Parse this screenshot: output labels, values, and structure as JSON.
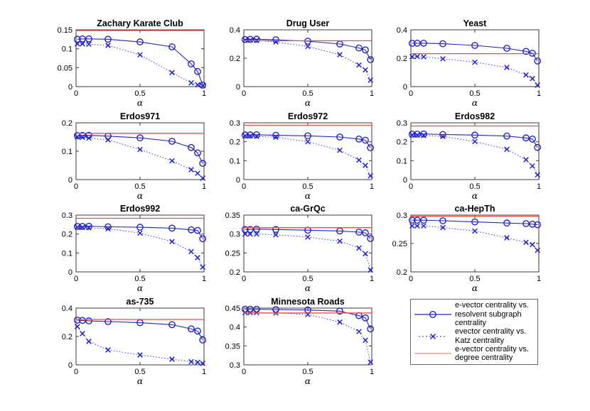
{
  "figure": {
    "background": "#ffffff"
  },
  "colors": {
    "series_blue": "#2323cd",
    "degree_red": "#ef4f47",
    "legend_degree_pink": "#f4b2ae",
    "axis_box": "#3a3a3a",
    "text": "#000000",
    "legend_border": "#666666"
  },
  "xlabel": "α",
  "legend": {
    "entries": [
      {
        "marker": "circle-line",
        "label": "e-vector centrality vs. resolvent subgraph centrality"
      },
      {
        "marker": "x-line",
        "label": "evector centrality vs. Katz centrality"
      },
      {
        "marker": "plain-line",
        "label": "e-vector centrality vs. degree centrality"
      }
    ]
  },
  "chart_data": [
    {
      "type": "line",
      "title": "Zachary Karate Club",
      "x": [
        0.01,
        0.05,
        0.1,
        0.25,
        0.5,
        0.75,
        0.9,
        0.95,
        0.99
      ],
      "xticks": [
        "0",
        "0.5",
        "1"
      ],
      "xlim": [
        0,
        1
      ],
      "ylim": [
        0,
        0.15
      ],
      "yticks": [
        "0",
        "0.05",
        "0.1",
        "0.15"
      ],
      "series": [
        {
          "name": "e-vector centrality vs. resolvent subgraph centrality",
          "marker": "circle",
          "values": [
            0.125,
            0.126,
            0.126,
            0.125,
            0.118,
            0.105,
            0.06,
            0.04,
            0.004
          ]
        },
        {
          "name": "evector centrality vs. Katz centrality",
          "marker": "x",
          "values": [
            0.113,
            0.113,
            0.112,
            0.109,
            0.084,
            0.037,
            0.01,
            0.005,
            0.002
          ]
        },
        {
          "name": "e-vector centrality vs. degree centrality",
          "marker": "none",
          "constant": 0.148
        }
      ]
    },
    {
      "type": "line",
      "title": "Drug User",
      "x": [
        0.01,
        0.05,
        0.1,
        0.25,
        0.5,
        0.75,
        0.9,
        0.95,
        0.99
      ],
      "xticks": [
        "0",
        "0.5",
        "1"
      ],
      "xlim": [
        0,
        1
      ],
      "ylim": [
        0,
        0.4
      ],
      "yticks": [
        "0",
        "0.2",
        "0.4"
      ],
      "series": [
        {
          "name": "e-vector centrality vs. resolvent subgraph centrality",
          "marker": "circle",
          "values": [
            0.332,
            0.333,
            0.334,
            0.33,
            0.32,
            0.3,
            0.272,
            0.258,
            0.19
          ]
        },
        {
          "name": "evector centrality vs. Katz centrality",
          "marker": "x",
          "values": [
            0.328,
            0.327,
            0.325,
            0.314,
            0.283,
            0.225,
            0.152,
            0.118,
            0.045
          ]
        },
        {
          "name": "e-vector centrality vs. degree centrality",
          "marker": "none",
          "constant": 0.323
        }
      ]
    },
    {
      "type": "line",
      "title": "Yeast",
      "x": [
        0.01,
        0.05,
        0.1,
        0.25,
        0.5,
        0.75,
        0.9,
        0.95,
        0.99
      ],
      "xticks": [
        "0",
        "0.5",
        "1"
      ],
      "xlim": [
        0,
        1
      ],
      "ylim": [
        0,
        0.4
      ],
      "yticks": [
        "0",
        "0.2",
        "0.4"
      ],
      "series": [
        {
          "name": "e-vector centrality vs. resolvent subgraph centrality",
          "marker": "circle",
          "values": [
            0.305,
            0.306,
            0.306,
            0.302,
            0.29,
            0.27,
            0.248,
            0.235,
            0.18
          ]
        },
        {
          "name": "evector centrality vs. Katz centrality",
          "marker": "x",
          "values": [
            0.212,
            0.212,
            0.21,
            0.196,
            0.172,
            0.135,
            0.082,
            0.057,
            0.01
          ]
        },
        {
          "name": "e-vector centrality vs. degree centrality",
          "marker": "none",
          "constant": 0.232
        }
      ]
    },
    {
      "type": "line",
      "title": "Erdos971",
      "x": [
        0.01,
        0.05,
        0.1,
        0.25,
        0.5,
        0.75,
        0.9,
        0.95,
        0.99
      ],
      "xticks": [
        "0",
        "0.5",
        "1"
      ],
      "xlim": [
        0,
        1
      ],
      "ylim": [
        0,
        0.2
      ],
      "yticks": [
        "0",
        "0.1",
        "0.2"
      ],
      "series": [
        {
          "name": "e-vector centrality vs. resolvent subgraph centrality",
          "marker": "circle",
          "values": [
            0.155,
            0.156,
            0.156,
            0.153,
            0.147,
            0.135,
            0.113,
            0.094,
            0.057
          ]
        },
        {
          "name": "evector centrality vs. Katz centrality",
          "marker": "x",
          "values": [
            0.15,
            0.149,
            0.146,
            0.14,
            0.106,
            0.066,
            0.035,
            0.022,
            0.005
          ]
        },
        {
          "name": "e-vector centrality vs. degree centrality",
          "marker": "none",
          "constant": 0.163
        }
      ]
    },
    {
      "type": "line",
      "title": "Erdos972",
      "x": [
        0.01,
        0.05,
        0.1,
        0.25,
        0.5,
        0.75,
        0.9,
        0.95,
        0.99
      ],
      "xticks": [
        "0",
        "0.5",
        "1"
      ],
      "xlim": [
        0,
        1
      ],
      "ylim": [
        0,
        0.3
      ],
      "yticks": [
        "0",
        "0.1",
        "0.2",
        "0.3"
      ],
      "series": [
        {
          "name": "e-vector centrality vs. resolvent subgraph centrality",
          "marker": "circle",
          "values": [
            0.236,
            0.236,
            0.237,
            0.234,
            0.231,
            0.225,
            0.214,
            0.208,
            0.168
          ]
        },
        {
          "name": "evector centrality vs. Katz centrality",
          "marker": "x",
          "values": [
            0.231,
            0.23,
            0.228,
            0.224,
            0.2,
            0.155,
            0.103,
            0.075,
            0.02
          ]
        },
        {
          "name": "e-vector centrality vs. degree centrality",
          "marker": "none",
          "constant": 0.287
        }
      ]
    },
    {
      "type": "line",
      "title": "Erdos982",
      "x": [
        0.01,
        0.05,
        0.1,
        0.25,
        0.5,
        0.75,
        0.9,
        0.95,
        0.99
      ],
      "xticks": [
        "0",
        "0.5",
        "1"
      ],
      "xlim": [
        0,
        1
      ],
      "ylim": [
        0,
        0.3
      ],
      "yticks": [
        "0",
        "0.1",
        "0.2",
        "0.3"
      ],
      "series": [
        {
          "name": "e-vector centrality vs. resolvent subgraph centrality",
          "marker": "circle",
          "values": [
            0.24,
            0.24,
            0.241,
            0.238,
            0.235,
            0.23,
            0.22,
            0.214,
            0.17
          ]
        },
        {
          "name": "evector centrality vs. Katz centrality",
          "marker": "x",
          "values": [
            0.236,
            0.235,
            0.233,
            0.228,
            0.201,
            0.16,
            0.105,
            0.072,
            0.025
          ]
        },
        {
          "name": "e-vector centrality vs. degree centrality",
          "marker": "none",
          "constant": 0.283
        }
      ]
    },
    {
      "type": "line",
      "title": "Erdos992",
      "x": [
        0.01,
        0.05,
        0.1,
        0.25,
        0.5,
        0.75,
        0.9,
        0.95,
        0.99
      ],
      "xticks": [
        "0",
        "0.5",
        "1"
      ],
      "xlim": [
        0,
        1
      ],
      "ylim": [
        0,
        0.3
      ],
      "yticks": [
        "0",
        "0.1",
        "0.2",
        "0.3"
      ],
      "series": [
        {
          "name": "e-vector centrality vs. resolvent subgraph centrality",
          "marker": "circle",
          "values": [
            0.24,
            0.24,
            0.241,
            0.238,
            0.236,
            0.231,
            0.222,
            0.219,
            0.175
          ]
        },
        {
          "name": "evector centrality vs. Katz centrality",
          "marker": "x",
          "values": [
            0.236,
            0.235,
            0.233,
            0.228,
            0.205,
            0.16,
            0.107,
            0.075,
            0.025
          ]
        },
        {
          "name": "e-vector centrality vs. degree centrality",
          "marker": "none",
          "constant": 0.283
        }
      ]
    },
    {
      "type": "line",
      "title": "ca-GrQc",
      "x": [
        0.01,
        0.05,
        0.1,
        0.25,
        0.5,
        0.75,
        0.9,
        0.95,
        0.99
      ],
      "xticks": [
        "0",
        "0.5",
        "1"
      ],
      "xlim": [
        0,
        1
      ],
      "ylim": [
        0.2,
        0.35
      ],
      "yticks": [
        "0.2",
        "0.25",
        "0.3",
        "0.35"
      ],
      "series": [
        {
          "name": "e-vector centrality vs. resolvent subgraph centrality",
          "marker": "circle",
          "values": [
            0.312,
            0.312,
            0.313,
            0.312,
            0.31,
            0.308,
            0.305,
            0.303,
            0.288
          ]
        },
        {
          "name": "evector centrality vs. Katz centrality",
          "marker": "x",
          "values": [
            0.3,
            0.3,
            0.3,
            0.298,
            0.292,
            0.281,
            0.263,
            0.248,
            0.205
          ]
        },
        {
          "name": "e-vector centrality vs. degree centrality",
          "marker": "none",
          "constant": 0.317
        }
      ]
    },
    {
      "type": "line",
      "title": "ca-HepTh",
      "x": [
        0.01,
        0.05,
        0.1,
        0.25,
        0.5,
        0.75,
        0.9,
        0.95,
        0.99
      ],
      "xticks": [
        "0",
        "0.5",
        "1"
      ],
      "xlim": [
        0,
        1
      ],
      "ylim": [
        0.2,
        0.3
      ],
      "yticks": [
        "0.2",
        "0.25",
        "0.3"
      ],
      "series": [
        {
          "name": "e-vector centrality vs. resolvent subgraph centrality",
          "marker": "circle",
          "values": [
            0.291,
            0.291,
            0.291,
            0.29,
            0.288,
            0.286,
            0.285,
            0.284,
            0.283
          ]
        },
        {
          "name": "evector centrality vs. Katz centrality",
          "marker": "x",
          "values": [
            0.281,
            0.281,
            0.281,
            0.278,
            0.272,
            0.26,
            0.252,
            0.248,
            0.238
          ]
        },
        {
          "name": "e-vector centrality vs. degree centrality",
          "marker": "none",
          "constant": 0.298
        }
      ]
    },
    {
      "type": "line",
      "title": "as-735",
      "x": [
        0.01,
        0.05,
        0.1,
        0.25,
        0.5,
        0.75,
        0.9,
        0.95,
        0.99
      ],
      "xticks": [
        "0",
        "0.5",
        "1"
      ],
      "xlim": [
        0,
        1
      ],
      "ylim": [
        0,
        0.4
      ],
      "yticks": [
        "0",
        "0.2",
        "0.4"
      ],
      "series": [
        {
          "name": "e-vector centrality vs. resolvent subgraph centrality",
          "marker": "circle",
          "values": [
            0.315,
            0.313,
            0.31,
            0.305,
            0.297,
            0.283,
            0.253,
            0.238,
            0.175
          ]
        },
        {
          "name": "evector centrality vs. Katz centrality",
          "marker": "x",
          "values": [
            0.27,
            0.22,
            0.165,
            0.105,
            0.07,
            0.04,
            0.022,
            0.018,
            0.01
          ]
        },
        {
          "name": "e-vector centrality vs. degree centrality",
          "marker": "none",
          "constant": 0.32
        }
      ]
    },
    {
      "type": "line",
      "title": "Minnesota Roads",
      "x": [
        0.01,
        0.05,
        0.1,
        0.25,
        0.5,
        0.75,
        0.9,
        0.95,
        0.99
      ],
      "xticks": [
        "0",
        "0.5",
        "1"
      ],
      "xlim": [
        0,
        1
      ],
      "ylim": [
        0.3,
        0.45
      ],
      "yticks": [
        "0.3",
        "0.35",
        "0.4",
        "0.45"
      ],
      "series": [
        {
          "name": "e-vector centrality vs. resolvent subgraph centrality",
          "marker": "circle",
          "values": [
            0.447,
            0.447,
            0.447,
            0.446,
            0.445,
            0.442,
            0.43,
            0.424,
            0.395
          ]
        },
        {
          "name": "evector centrality vs. Katz centrality",
          "marker": "x",
          "values": [
            0.438,
            0.438,
            0.438,
            0.437,
            0.433,
            0.413,
            0.388,
            0.365,
            0.307
          ]
        },
        {
          "name": "e-vector centrality vs. degree centrality",
          "marker": "none",
          "constant": 0.437
        }
      ]
    }
  ]
}
